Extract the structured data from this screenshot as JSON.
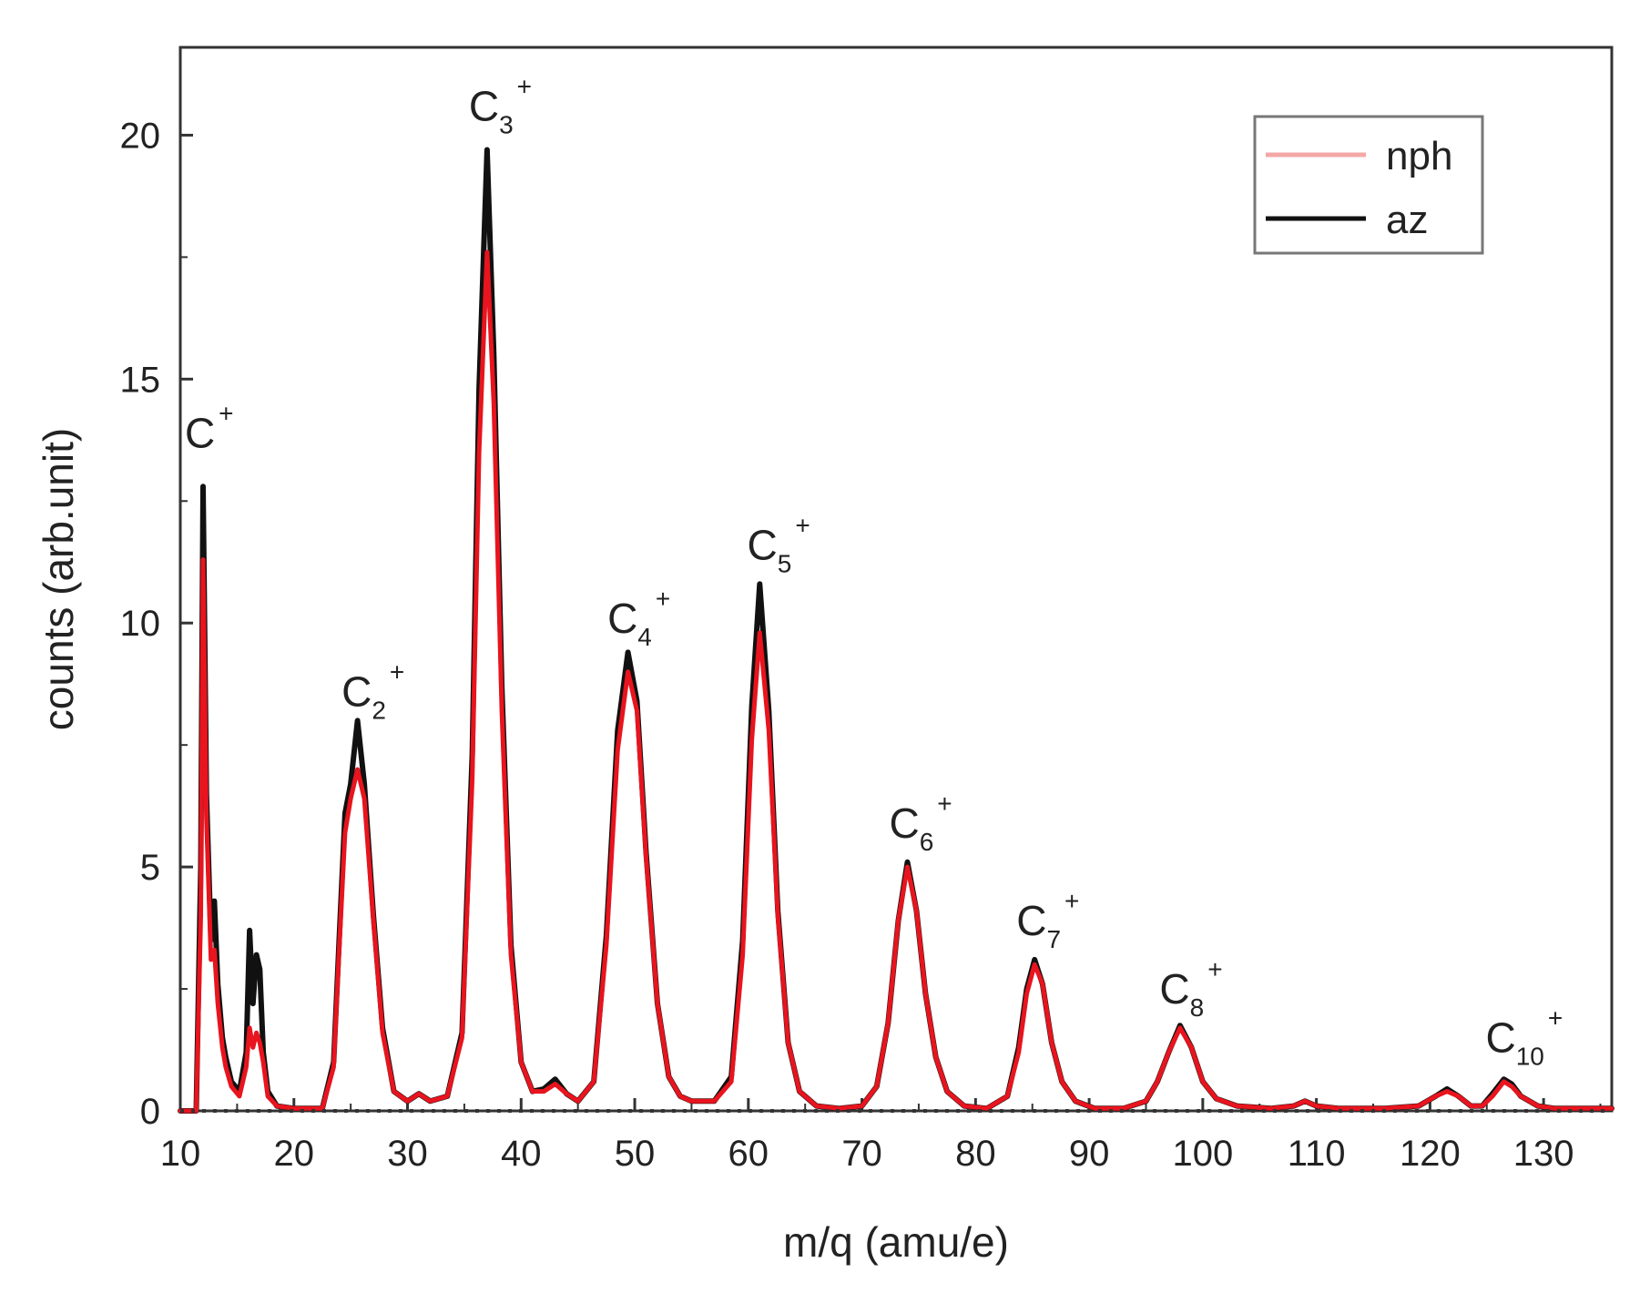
{
  "chart_data": {
    "type": "line",
    "xlabel": "m/q (amu/e)",
    "ylabel": "counts (arb.unit)",
    "xlim": [
      10,
      136
    ],
    "ylim": [
      0,
      21.8
    ],
    "xticks": [
      10,
      20,
      30,
      40,
      50,
      60,
      70,
      80,
      90,
      100,
      110,
      120,
      130
    ],
    "yticks": [
      0,
      5,
      10,
      15,
      20
    ],
    "grid": false,
    "legend": {
      "placement": "top-right",
      "entries": [
        {
          "label": "nph",
          "color": "#f4a7a7"
        },
        {
          "label": "az",
          "color": "#111111"
        }
      ]
    },
    "series": [
      {
        "name": "nph",
        "color": "#e8141e",
        "x": [
          10,
          11.4,
          11.8,
          12,
          12.3,
          12.7,
          13,
          13.3,
          13.7,
          14,
          14.5,
          15.2,
          15.8,
          16.1,
          16.4,
          16.7,
          17,
          17.3,
          17.7,
          18.5,
          20,
          22.5,
          23.5,
          24,
          24.5,
          25,
          25.6,
          26.2,
          27,
          27.8,
          28.8,
          30,
          31,
          32,
          33.5,
          34.8,
          35.7,
          36.3,
          37,
          37.6,
          38.3,
          39.1,
          40,
          41,
          42,
          43,
          44,
          45,
          46.4,
          47.5,
          48.5,
          49.4,
          50.2,
          51,
          52,
          53,
          54,
          55,
          56,
          57,
          58.5,
          59.5,
          60.3,
          61,
          61.8,
          62.6,
          63.5,
          64.5,
          66,
          68,
          70,
          71.3,
          72.3,
          73.2,
          74,
          74.8,
          75.6,
          76.5,
          77.5,
          79,
          81,
          82.8,
          83.8,
          84.5,
          85.2,
          85.9,
          86.7,
          87.6,
          88.8,
          90.5,
          93,
          95,
          96,
          97,
          98,
          99,
          100,
          101.2,
          103,
          106,
          108,
          109,
          110,
          112,
          116,
          119,
          120.5,
          121.5,
          122.5,
          123.6,
          124.6,
          125.5,
          126.5,
          127.2,
          128,
          129.5,
          131,
          136
        ],
        "y": [
          0,
          0,
          4,
          11.3,
          6,
          3.1,
          3.3,
          2.2,
          1.3,
          0.9,
          0.5,
          0.3,
          0.9,
          1.7,
          1.3,
          1.6,
          1.4,
          1.0,
          0.3,
          0.1,
          0.05,
          0.05,
          0.9,
          3.4,
          5.7,
          6.4,
          7.0,
          6.4,
          3.9,
          1.6,
          0.4,
          0.2,
          0.35,
          0.2,
          0.3,
          1.5,
          6.8,
          13.5,
          17.6,
          14.5,
          8.2,
          3.2,
          1.0,
          0.4,
          0.4,
          0.55,
          0.35,
          0.2,
          0.6,
          3.4,
          7.4,
          9.0,
          8.2,
          5.2,
          2.2,
          0.7,
          0.3,
          0.2,
          0.2,
          0.2,
          0.6,
          3.2,
          7.6,
          9.8,
          7.8,
          4.0,
          1.4,
          0.4,
          0.1,
          0.05,
          0.1,
          0.5,
          1.8,
          3.9,
          5.0,
          4.1,
          2.4,
          1.1,
          0.4,
          0.1,
          0.05,
          0.3,
          1.2,
          2.4,
          3.0,
          2.6,
          1.4,
          0.6,
          0.2,
          0.05,
          0.05,
          0.2,
          0.6,
          1.2,
          1.7,
          1.3,
          0.6,
          0.25,
          0.1,
          0.05,
          0.1,
          0.2,
          0.1,
          0.05,
          0.05,
          0.1,
          0.3,
          0.4,
          0.3,
          0.1,
          0.1,
          0.3,
          0.6,
          0.5,
          0.3,
          0.1,
          0.05,
          0.05
        ]
      },
      {
        "name": "az",
        "color": "#111111",
        "x": [
          10,
          11.4,
          11.8,
          12,
          12.3,
          12.7,
          13,
          13.3,
          13.7,
          14,
          14.5,
          15.2,
          15.8,
          16.1,
          16.4,
          16.7,
          17,
          17.3,
          17.7,
          18.5,
          20,
          22.5,
          23.5,
          24,
          24.5,
          25,
          25.6,
          26.2,
          27,
          27.8,
          28.8,
          30,
          31,
          32,
          33.5,
          34.8,
          35.7,
          36.3,
          37,
          37.6,
          38.3,
          39.1,
          40,
          41,
          42,
          43,
          44,
          45,
          46.4,
          47.5,
          48.5,
          49.4,
          50.2,
          51,
          52,
          53,
          54,
          55,
          56,
          57,
          58.5,
          59.5,
          60.3,
          61,
          61.8,
          62.6,
          63.5,
          64.5,
          66,
          68,
          70,
          71.3,
          72.3,
          73.2,
          74,
          74.8,
          75.6,
          76.5,
          77.5,
          79,
          81,
          82.8,
          83.8,
          84.5,
          85.2,
          85.9,
          86.7,
          87.6,
          88.8,
          90.5,
          93,
          95,
          96,
          97,
          98,
          99,
          100,
          101.2,
          103,
          106,
          108,
          109,
          110,
          112,
          116,
          119,
          120.5,
          121.5,
          122.5,
          123.6,
          124.6,
          125.5,
          126.5,
          127.2,
          128,
          129.5,
          131,
          136
        ],
        "y": [
          0,
          0,
          5,
          12.8,
          6.5,
          3.5,
          4.3,
          2.6,
          1.5,
          1.1,
          0.6,
          0.4,
          1.2,
          3.7,
          2.2,
          3.2,
          2.9,
          1.2,
          0.4,
          0.1,
          0.05,
          0.05,
          1.0,
          3.6,
          6.1,
          6.7,
          8.0,
          6.7,
          4.0,
          1.7,
          0.4,
          0.2,
          0.35,
          0.2,
          0.3,
          1.6,
          7.3,
          14.8,
          19.7,
          15.5,
          8.7,
          3.4,
          1.0,
          0.4,
          0.45,
          0.65,
          0.35,
          0.2,
          0.6,
          3.6,
          7.8,
          9.4,
          8.4,
          5.3,
          2.2,
          0.7,
          0.3,
          0.2,
          0.2,
          0.2,
          0.7,
          3.5,
          8.3,
          10.8,
          8.2,
          4.1,
          1.4,
          0.4,
          0.1,
          0.05,
          0.1,
          0.5,
          1.8,
          3.9,
          5.1,
          4.1,
          2.4,
          1.1,
          0.4,
          0.1,
          0.05,
          0.3,
          1.3,
          2.5,
          3.1,
          2.6,
          1.4,
          0.6,
          0.2,
          0.05,
          0.05,
          0.2,
          0.6,
          1.2,
          1.75,
          1.3,
          0.6,
          0.25,
          0.1,
          0.05,
          0.1,
          0.2,
          0.1,
          0.05,
          0.05,
          0.1,
          0.3,
          0.45,
          0.3,
          0.1,
          0.1,
          0.35,
          0.65,
          0.55,
          0.3,
          0.1,
          0.05,
          0.05
        ]
      }
    ],
    "annotations": [
      {
        "base": "C",
        "sub": "",
        "sup": "+",
        "x": 12,
        "y": 13.6
      },
      {
        "base": "C",
        "sub": "2",
        "sup": "+",
        "x": 25.8,
        "y": 8.3
      },
      {
        "base": "C",
        "sub": "3",
        "sup": "+",
        "x": 37,
        "y": 20.3
      },
      {
        "base": "C",
        "sub": "4",
        "sup": "+",
        "x": 49.2,
        "y": 9.8
      },
      {
        "base": "C",
        "sub": "5",
        "sup": "+",
        "x": 61.5,
        "y": 11.3
      },
      {
        "base": "C",
        "sub": "6",
        "sup": "+",
        "x": 74,
        "y": 5.6
      },
      {
        "base": "C",
        "sub": "7",
        "sup": "+",
        "x": 85.2,
        "y": 3.6
      },
      {
        "base": "C",
        "sub": "8",
        "sup": "+",
        "x": 97.8,
        "y": 2.2
      },
      {
        "base": "C",
        "sub": "10",
        "sup": "+",
        "x": 126.5,
        "y": 1.2
      }
    ]
  }
}
